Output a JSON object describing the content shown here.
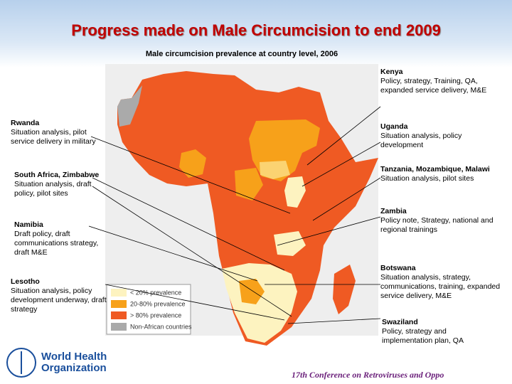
{
  "title": "Progress made on Male Circumcision to end 2009",
  "subtitle": "Male circumcision prevalence at country level, 2006",
  "left_callouts": [
    {
      "country": "Rwanda",
      "text": "Situation analysis, pilot service delivery in military"
    },
    {
      "country": "South Africa, Zimbabwe",
      "text": "Situation analysis, draft policy, pilot sites"
    },
    {
      "country": "Namibia",
      "text": "Draft policy, draft communications strategy, draft M&E"
    },
    {
      "country": "Lesotho",
      "text": "Situation analysis, policy development underway, draft strategy"
    }
  ],
  "right_callouts": [
    {
      "country": "Kenya",
      "text": "Policy, strategy, Training, QA, expanded service delivery, M&E"
    },
    {
      "country": "Uganda",
      "text": "Situation analysis, policy development"
    },
    {
      "country": "Tanzania, Mozambique, Malawi",
      "text": "Situation analysis, pilot sites"
    },
    {
      "country": "Zambia",
      "text": "Policy note, Strategy, national and regional trainings"
    },
    {
      "country": "Botswana",
      "text": "Situation analysis, strategy, communications, training, expanded service delivery, M&E"
    },
    {
      "country": "Swaziland",
      "text": "Policy, strategy and implementation plan, QA"
    }
  ],
  "legend": [
    "< 20% prevalence",
    "20-80% prevalence",
    "> 80% prevalence",
    "Non-African countries"
  ],
  "footer": {
    "organization": [
      "World Health",
      "Organization"
    ],
    "conference": "17th Conference on Retroviruses and Oppo"
  }
}
